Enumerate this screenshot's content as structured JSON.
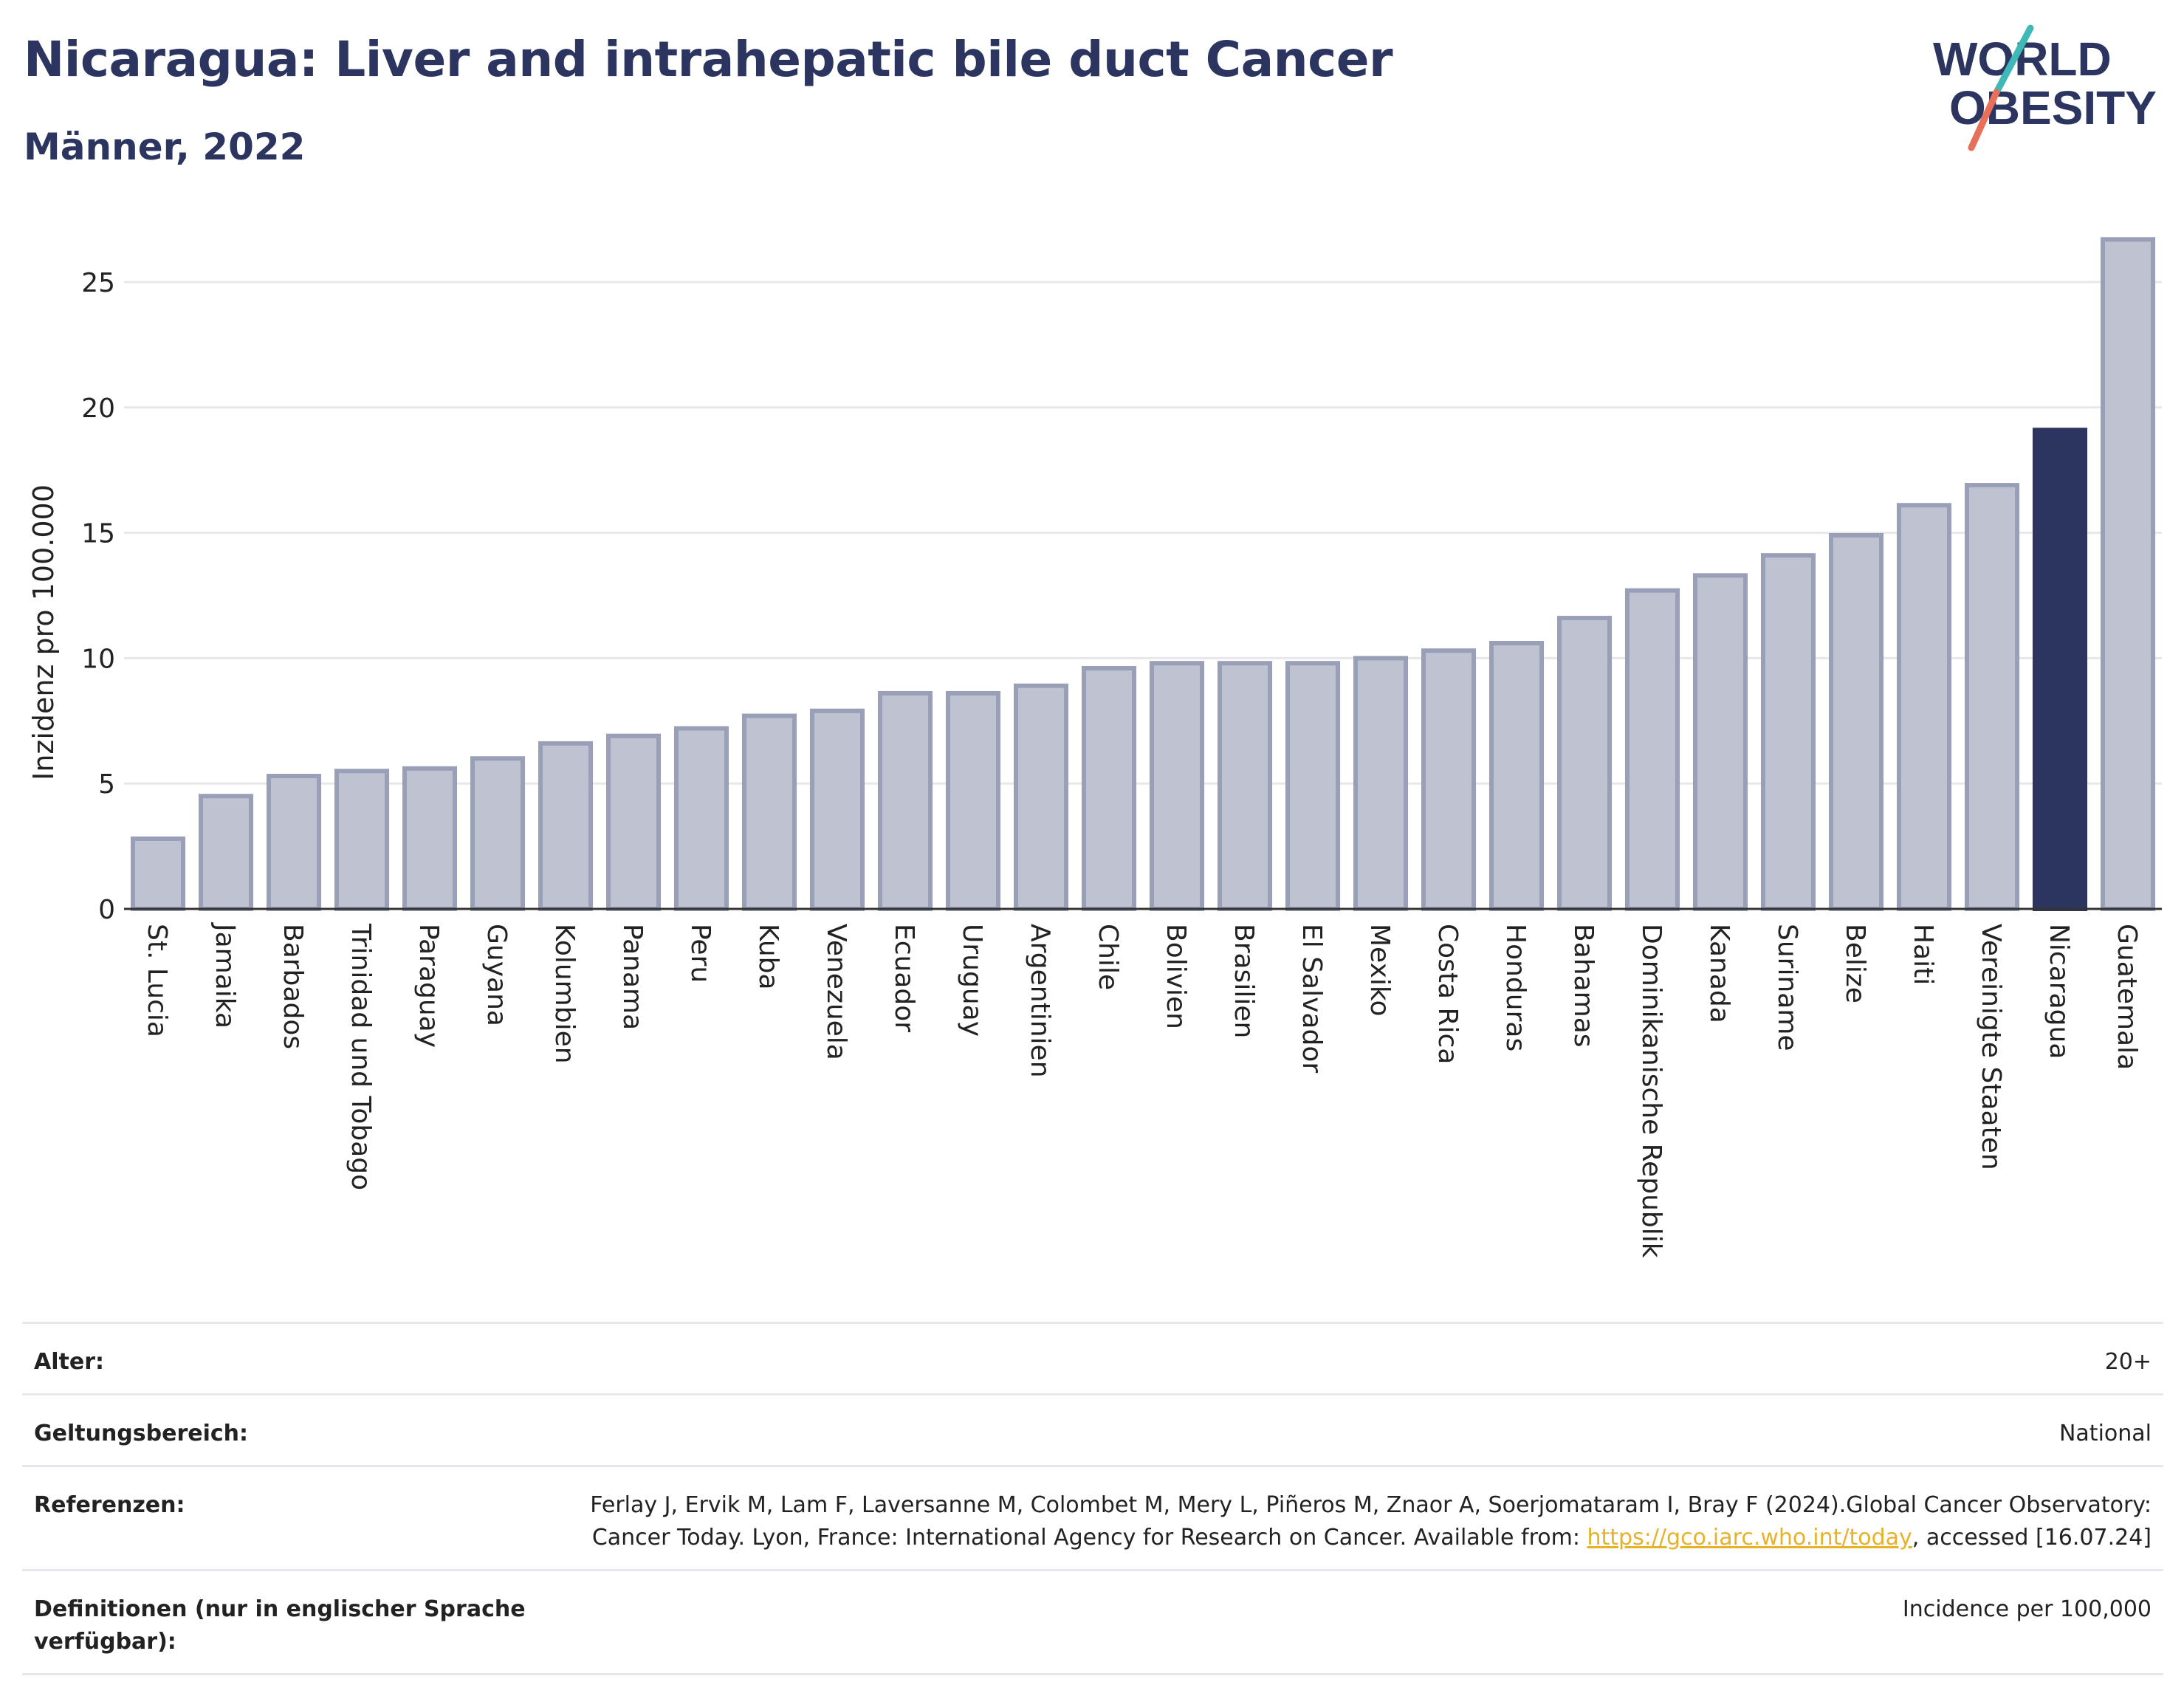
{
  "title": "Nicaragua: Liver and intrahepatic bile duct Cancer",
  "subtitle": "Männer, 2022",
  "logo": {
    "line1": "WORLD",
    "line2": "OBESITY"
  },
  "colors": {
    "bar": "#bfc2d1",
    "bar_stroke": "#9a9fb8",
    "highlight": "#2b3560",
    "title": "#2b3560",
    "grid": "#e8e8ec"
  },
  "chart_data": {
    "type": "bar",
    "ylabel": "Inzidenz pro 100.000",
    "xlabel": "",
    "ylim": [
      0,
      27
    ],
    "yticks": [
      0,
      5,
      10,
      15,
      20,
      25
    ],
    "grid": true,
    "categories": [
      "St. Lucia",
      "Jamaika",
      "Barbados",
      "Trinidad und Tobago",
      "Paraguay",
      "Guyana",
      "Kolumbien",
      "Panama",
      "Peru",
      "Kuba",
      "Venezuela",
      "Ecuador",
      "Uruguay",
      "Argentinien",
      "Chile",
      "Bolivien",
      "Brasilien",
      "El Salvador",
      "Mexiko",
      "Costa Rica",
      "Honduras",
      "Bahamas",
      "Dominikanische Republik",
      "Kanada",
      "Suriname",
      "Belize",
      "Haiti",
      "Vereinigte Staaten",
      "Nicaragua",
      "Guatemala"
    ],
    "values": [
      2.8,
      4.5,
      5.3,
      5.5,
      5.6,
      6.0,
      6.6,
      6.9,
      7.2,
      7.7,
      7.9,
      8.6,
      8.6,
      8.9,
      9.6,
      9.8,
      9.8,
      9.8,
      10.0,
      10.3,
      10.6,
      11.6,
      12.7,
      13.3,
      14.1,
      14.9,
      16.1,
      16.9,
      19.1,
      26.7
    ],
    "highlight": "Nicaragua"
  },
  "meta": {
    "rows": [
      {
        "label": "Alter:",
        "value": "20+"
      },
      {
        "label": "Geltungsbereich:",
        "value": "National"
      },
      {
        "label": "Referenzen:",
        "value_pre": "Ferlay J, Ervik M, Lam F, Laversanne M, Colombet M, Mery L, Piñeros M, Znaor A, Soerjomataram I, Bray F (2024).Global Cancer Observatory: Cancer Today. Lyon, France: International Agency for Research on Cancer. Available from: ",
        "link": "https://gco.iarc.who.int/today",
        "value_post": ", accessed [16.07.24]"
      },
      {
        "label": "Definitionen (nur in englischer Sprache verfügbar):",
        "value": "Incidence per 100,000"
      }
    ]
  }
}
